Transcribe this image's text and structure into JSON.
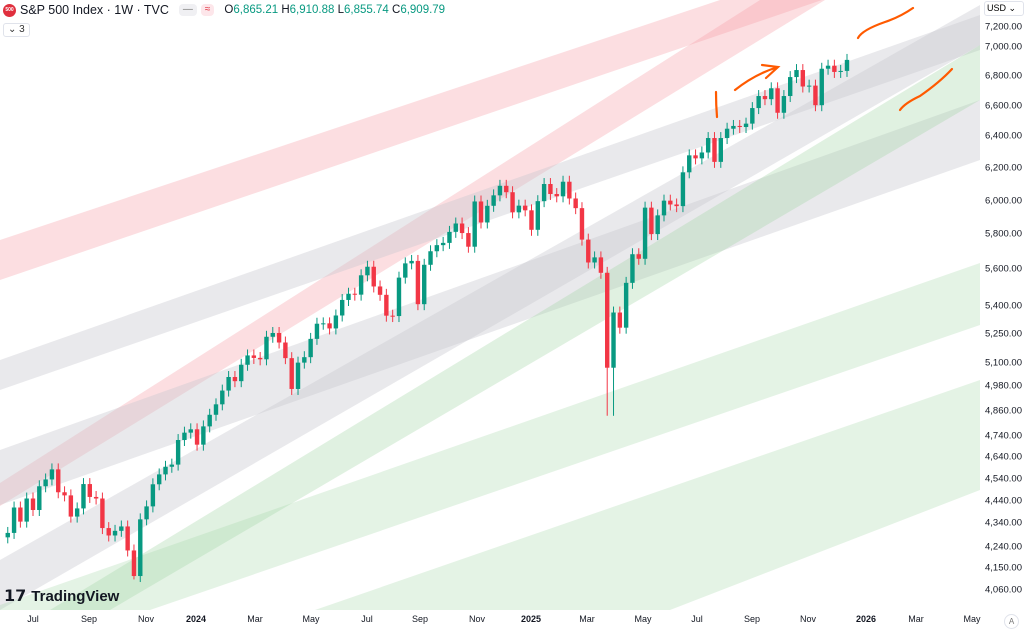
{
  "header": {
    "logo_text": "500",
    "title": "S&P 500 Index · 1W · TVC",
    "pill_a": "—",
    "pill_b": "≈",
    "open_label": "O",
    "open": "6,865.21",
    "high_label": "H",
    "high": "6,910.88",
    "low_label": "L",
    "low": "6,855.74",
    "close_label": "C",
    "close": "6,909.79",
    "indicators_collapsed": "⌄ 3"
  },
  "currency": "USD ⌄",
  "brand": "TradingView",
  "auto_scale_label": "A",
  "colors": {
    "up": "#089981",
    "down": "#f23645",
    "annotation": "#ff5a00"
  },
  "y_axis": {
    "scale": "log",
    "labels": [
      "7,200.00",
      "7,000.00",
      "6,800.00",
      "6,600.00",
      "6,400.00",
      "6,200.00",
      "6,000.00",
      "5,800.00",
      "5,600.00",
      "5,400.00",
      "5,250.00",
      "5,100.00",
      "4,980.00",
      "4,860.00",
      "4,740.00",
      "4,640.00",
      "4,540.00",
      "4,440.00",
      "4,340.00",
      "4,240.00",
      "4,150.00",
      "4,060.00"
    ]
  },
  "x_axis": {
    "labels": [
      "Jul",
      "Sep",
      "Nov",
      "2024",
      "Mar",
      "May",
      "Jul",
      "Sep",
      "Nov",
      "2025",
      "Mar",
      "May",
      "Jul",
      "Sep",
      "Nov",
      "2026",
      "Mar",
      "May"
    ]
  },
  "chart_data": {
    "type": "candlestick",
    "title": "S&P 500 Index · 1W · TVC",
    "first_week": "2023-06-05",
    "first_open": 4280,
    "closes": [
      4299,
      4410,
      4348,
      4450,
      4399,
      4505,
      4536,
      4582,
      4478,
      4464,
      4370,
      4406,
      4515,
      4457,
      4450,
      4320,
      4288,
      4308,
      4327,
      4224,
      4117,
      4358,
      4415,
      4514,
      4559,
      4594,
      4604,
      4719,
      4754,
      4770,
      4697,
      4784,
      4840,
      4891,
      4959,
      5027,
      5006,
      5089,
      5137,
      5124,
      5117,
      5234,
      5254,
      5204,
      5123,
      4967,
      5100,
      5128,
      5223,
      5303,
      5305,
      5278,
      5347,
      5431,
      5465,
      5460,
      5567,
      5615,
      5505,
      5459,
      5346,
      5344,
      5554,
      5634,
      5648,
      5408,
      5626,
      5703,
      5738,
      5751,
      5815,
      5864,
      5808,
      5729,
      5995,
      5870,
      5969,
      6032,
      6090,
      6051,
      5930,
      5970,
      5942,
      5827,
      5997,
      6101,
      6040,
      6026,
      6115,
      6013,
      5955,
      5770,
      5639,
      5668,
      5581,
      5074,
      5363,
      5282,
      5525,
      5686,
      5660,
      5958,
      5802,
      5912,
      6000,
      5977,
      5967,
      6173,
      6279,
      6260,
      6297,
      6389,
      6238,
      6389,
      6449,
      6467,
      6460,
      6482,
      6584,
      6664,
      6643,
      6716,
      6553,
      6664,
      6792,
      6840,
      6728,
      6734,
      6603,
      6849,
      6870,
      6827,
      6834,
      6910
    ],
    "notable_lows": {
      "2023-10-23": 4103,
      "2025-03-31": 4835,
      "2025-04-07": 4835
    }
  }
}
